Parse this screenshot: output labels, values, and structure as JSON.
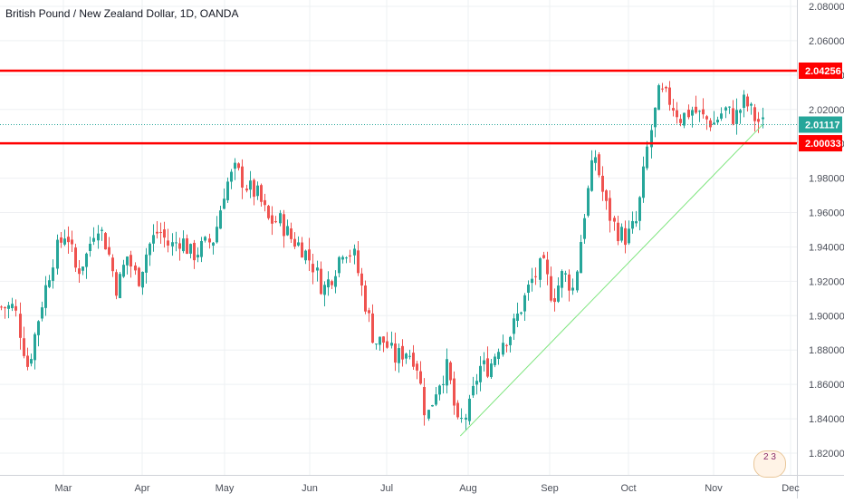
{
  "header": {
    "title": "British Pound / New Zealand Dollar, 1D, OANDA"
  },
  "badge": {
    "text": "2 3"
  },
  "colors": {
    "up": "#26a69a",
    "down": "#ef5350",
    "level": "#ff0000",
    "trend": "#7ee57e",
    "current_line": "#26a69a",
    "grid": "#eef0f3",
    "axis_text": "#4a4e58"
  },
  "chart_data": {
    "type": "candlestick",
    "symbol": "British Pound / New Zealand Dollar",
    "timeframe": "1D",
    "source": "OANDA",
    "ylim": [
      1.81,
      2.09
    ],
    "y_ticks": [
      "2.08000",
      "2.06000",
      "2.04000",
      "2.02000",
      "2.00000",
      "1.98000",
      "1.96000",
      "1.94000",
      "1.92000",
      "1.90000",
      "1.88000",
      "1.86000",
      "1.84000",
      "1.82000"
    ],
    "x_ticks": [
      "Mar",
      "Apr",
      "May",
      "Jun",
      "Jul",
      "Aug",
      "Sep",
      "Oct",
      "Nov",
      "Dec"
    ],
    "horizontal_levels": [
      {
        "label": "2.04256",
        "value": 2.04256,
        "color": "#ff0000"
      },
      {
        "label": "2.00033",
        "value": 2.00033,
        "color": "#ff0000"
      }
    ],
    "current_price": {
      "label": "2.01117",
      "value": 2.01117,
      "color": "#26a69a"
    },
    "trendline": {
      "from": {
        "date": "Jul 29",
        "price": 1.83
      },
      "to": {
        "date": "Nov 20",
        "price": 2.011
      }
    },
    "price_path": [
      [
        "Feb 15",
        1.905
      ],
      [
        "Feb 19",
        1.87
      ],
      [
        "Feb 23",
        1.905
      ],
      [
        "Feb 27",
        1.935
      ],
      [
        "Mar 2",
        1.95
      ],
      [
        "Mar 6",
        1.925
      ],
      [
        "Mar 10",
        1.935
      ],
      [
        "Mar 14",
        1.955
      ],
      [
        "Mar 18",
        1.94
      ],
      [
        "Mar 22",
        1.915
      ],
      [
        "Mar 26",
        1.935
      ],
      [
        "Mar 30",
        1.92
      ],
      [
        "Apr 3",
        1.94
      ],
      [
        "Apr 7",
        1.95
      ],
      [
        "Apr 11",
        1.94
      ],
      [
        "Apr 15",
        1.945
      ],
      [
        "Apr 19",
        1.935
      ],
      [
        "Apr 23",
        1.94
      ],
      [
        "Apr 27",
        1.945
      ],
      [
        "May 1",
        1.975
      ],
      [
        "May 5",
        1.985
      ],
      [
        "May 9",
        1.975
      ],
      [
        "May 13",
        1.97
      ],
      [
        "May 17",
        1.955
      ],
      [
        "May 21",
        1.955
      ],
      [
        "May 25",
        1.945
      ],
      [
        "May 29",
        1.94
      ],
      [
        "Jun 2",
        1.93
      ],
      [
        "Jun 6",
        1.915
      ],
      [
        "Jun 10",
        1.925
      ],
      [
        "Jun 14",
        1.94
      ],
      [
        "Jun 18",
        1.935
      ],
      [
        "Jun 22",
        1.91
      ],
      [
        "Jun 26",
        1.885
      ],
      [
        "Jun 30",
        1.885
      ],
      [
        "Jul 4",
        1.875
      ],
      [
        "Jul 8",
        1.88
      ],
      [
        "Jul 12",
        1.875
      ],
      [
        "Jul 16",
        1.84
      ],
      [
        "Jul 20",
        1.86
      ],
      [
        "Jul 24",
        1.87
      ],
      [
        "Jul 28",
        1.835
      ],
      [
        "Aug 1",
        1.845
      ],
      [
        "Aug 5",
        1.87
      ],
      [
        "Aug 9",
        1.87
      ],
      [
        "Aug 13",
        1.885
      ],
      [
        "Aug 17",
        1.89
      ],
      [
        "Aug 21",
        1.905
      ],
      [
        "Aug 25",
        1.92
      ],
      [
        "Aug 29",
        1.93
      ],
      [
        "Sep 2",
        1.91
      ],
      [
        "Sep 6",
        1.925
      ],
      [
        "Sep 10",
        1.915
      ],
      [
        "Sep 14",
        1.96
      ],
      [
        "Sep 18",
        1.995
      ],
      [
        "Sep 22",
        1.965
      ],
      [
        "Sep 26",
        1.95
      ],
      [
        "Sep 30",
        1.945
      ],
      [
        "Oct 4",
        1.955
      ],
      [
        "Oct 8",
        2.0
      ],
      [
        "Oct 12",
        2.03
      ],
      [
        "Oct 16",
        2.025
      ],
      [
        "Oct 20",
        2.015
      ],
      [
        "Oct 24",
        2.02
      ],
      [
        "Oct 28",
        2.015
      ],
      [
        "Nov 1",
        2.012
      ],
      [
        "Nov 5",
        2.02
      ],
      [
        "Nov 9",
        2.015
      ],
      [
        "Nov 13",
        2.025
      ],
      [
        "Nov 17",
        2.015
      ],
      [
        "Nov 20",
        2.011
      ]
    ],
    "grid": true
  }
}
